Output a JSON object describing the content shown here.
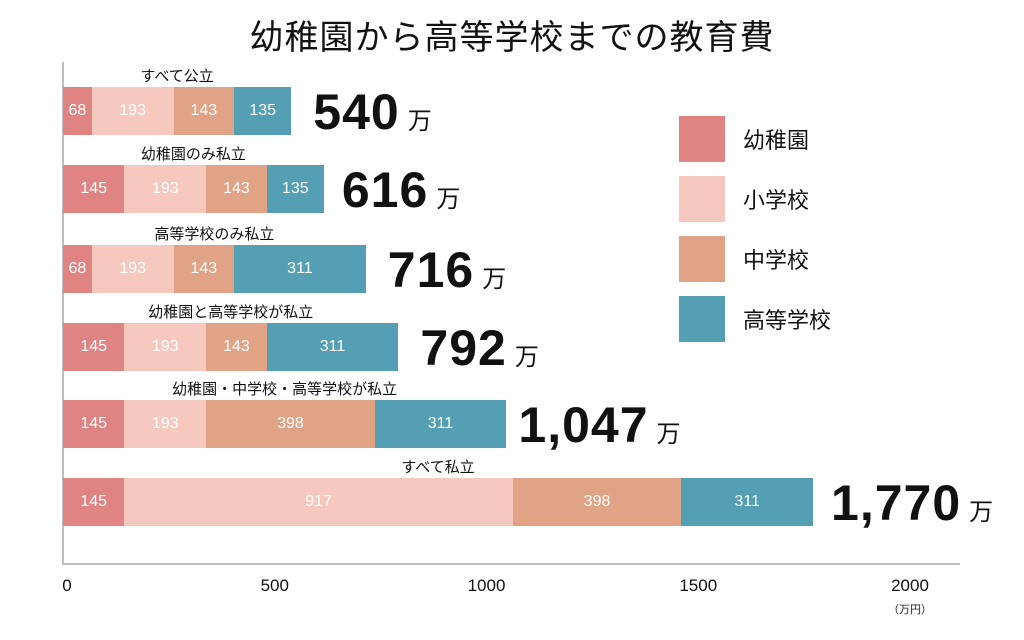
{
  "chart_data": {
    "type": "bar",
    "orientation": "horizontal",
    "stacked": true,
    "title": "幼稚園から高等学校までの教育費",
    "xlabel": "",
    "x_unit": "（万円）",
    "xlim": [
      0,
      2000
    ],
    "xticks": [
      "0",
      "500",
      "1000",
      "1500",
      "2000"
    ],
    "grid": false,
    "legend_position": "right",
    "total_unit": "万",
    "categories": [
      "すべて公立",
      "幼稚園のみ私立",
      "高等学校のみ私立",
      "幼稚園と高等学校が私立",
      "幼稚園・中学校・高等学校が私立",
      "すべて私立"
    ],
    "series": [
      {
        "name": "幼稚園",
        "color": "#e08383",
        "values": [
          68,
          145,
          68,
          145,
          145,
          145
        ]
      },
      {
        "name": "小学校",
        "color": "#f7c9be",
        "values": [
          193,
          193,
          193,
          193,
          193,
          917
        ]
      },
      {
        "name": "中学校",
        "color": "#e0a386",
        "values": [
          143,
          143,
          143,
          143,
          398,
          398
        ]
      },
      {
        "name": "高等学校",
        "color": "#549fb4",
        "values": [
          135,
          135,
          311,
          311,
          311,
          311
        ]
      }
    ],
    "totals": [
      "540",
      "616",
      "716",
      "792",
      "1,047",
      "1,770"
    ]
  }
}
